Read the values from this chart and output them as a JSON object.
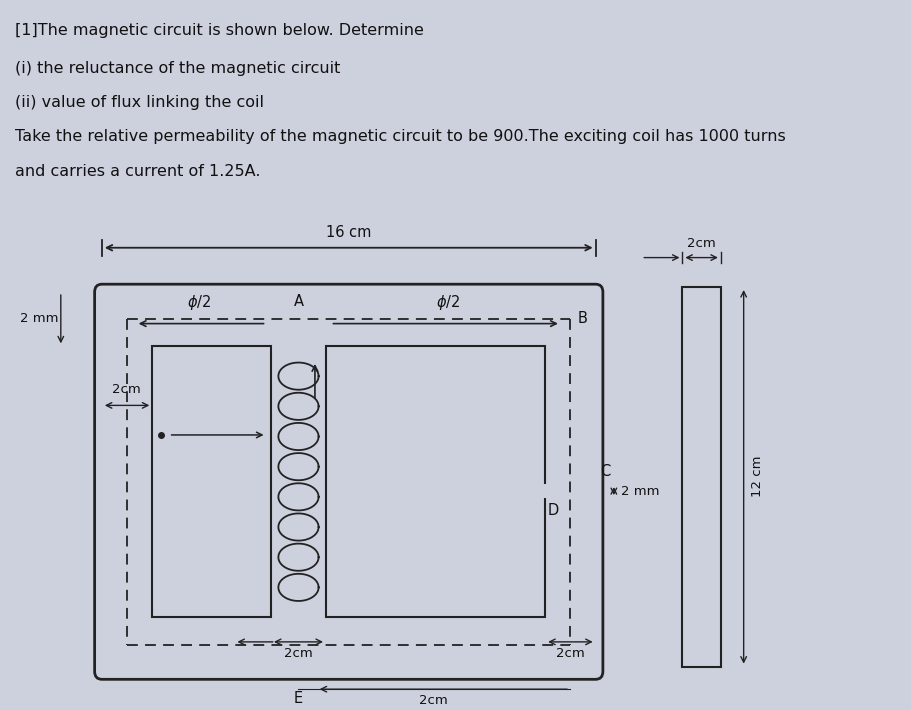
{
  "bg_color": "#cdd1de",
  "text_color": "#111111",
  "line_color": "#222222",
  "title_lines": [
    "[1]The magnetic circuit is shown below. Determine",
    "(i) the reluctance of the magnetic circuit",
    "(ii) value of flux linking the coil",
    "Take the relative permeability of the magnetic circuit to be 900.The exciting coil has 1000 turns",
    "and carries a current of 1.25A."
  ],
  "title_fontsize": 11.5
}
